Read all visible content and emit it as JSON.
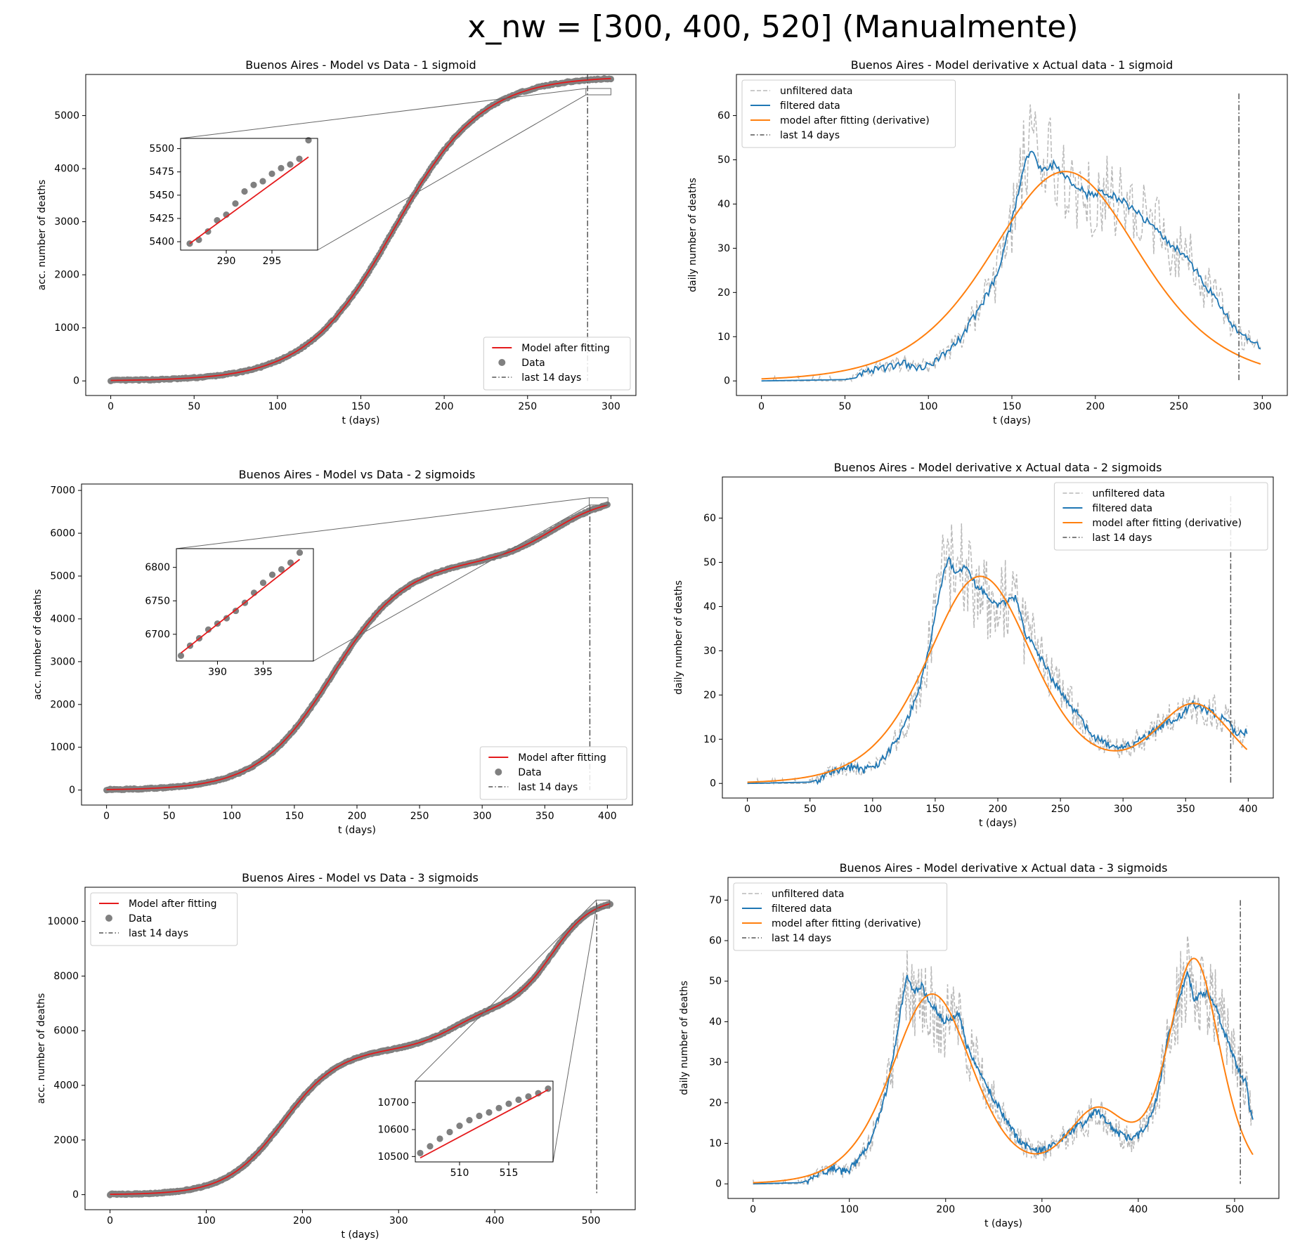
{
  "figure": {
    "suptitle": "x_nw = [300, 400, 520] (Manualmente)"
  },
  "colors": {
    "model": "#e41a1c",
    "data_points": "#808080",
    "unfiltered": "#b9b9b9",
    "filtered": "#1f77b4",
    "derivative": "#ff7f0e",
    "last14": "#555555"
  },
  "chart_data": [
    {
      "id": "c1",
      "type": "scatter",
      "title": "Buenos Aires - Model vs Data - 1 sigmoid",
      "xlabel": "t (days)",
      "ylabel": "acc. number of deaths",
      "xlim": [
        -15,
        315
      ],
      "ylim": [
        -275,
        5775
      ],
      "xticks": [
        0,
        50,
        100,
        150,
        200,
        250,
        300
      ],
      "yticks": [
        0,
        1000,
        2000,
        3000,
        4000,
        5000
      ],
      "legend": {
        "position": "lower-right",
        "entries": [
          "Model after fitting",
          "Data",
          "last 14 days"
        ]
      },
      "last14_x": 286,
      "model": {
        "sigmoids": [
          {
            "A": 5740,
            "t0": 170,
            "k": 0.038
          }
        ]
      },
      "inset": {
        "xlim": [
          285,
          300
        ],
        "ylim": [
          5391,
          5511
        ],
        "xticks": [
          290,
          295
        ],
        "yticks": [
          5400,
          5425,
          5450,
          5475,
          5500
        ],
        "points": [
          [
            286,
            5398
          ],
          [
            287,
            5402
          ],
          [
            288,
            5411
          ],
          [
            289,
            5423
          ],
          [
            290,
            5429
          ],
          [
            291,
            5441
          ],
          [
            292,
            5454
          ],
          [
            293,
            5461
          ],
          [
            294,
            5465
          ],
          [
            295,
            5473
          ],
          [
            296,
            5479
          ],
          [
            297,
            5483
          ],
          [
            298,
            5489
          ],
          [
            299,
            5509
          ]
        ],
        "model_points": [
          [
            286,
            5398
          ],
          [
            299,
            5491
          ]
        ]
      }
    },
    {
      "id": "c2",
      "type": "line",
      "title": "Buenos Aires - Model derivative x Actual data - 1 sigmoid",
      "xlabel": "t (days)",
      "ylabel": "daily number of deaths",
      "xlim": [
        -15,
        315
      ],
      "ylim": [
        -3.3,
        69.3
      ],
      "xticks": [
        0,
        50,
        100,
        150,
        200,
        250,
        300
      ],
      "yticks": [
        0,
        10,
        20,
        30,
        40,
        50,
        60
      ],
      "legend": {
        "position": "top-left",
        "entries": [
          "unfiltered data",
          "filtered data",
          "model after fitting (derivative)",
          "last 14 days"
        ]
      },
      "last14_x": 286,
      "last14_yrange": [
        0,
        65
      ],
      "days": 300,
      "filtered_keypoints": [
        [
          0,
          0
        ],
        [
          50,
          0.3
        ],
        [
          55,
          0.6
        ],
        [
          58,
          1.5
        ],
        [
          65,
          2.5
        ],
        [
          75,
          3
        ],
        [
          85,
          4.2
        ],
        [
          92,
          3.2
        ],
        [
          100,
          3.5
        ],
        [
          110,
          6
        ],
        [
          120,
          10
        ],
        [
          130,
          16
        ],
        [
          140,
          23
        ],
        [
          150,
          36
        ],
        [
          155,
          44
        ],
        [
          158,
          50
        ],
        [
          162,
          52
        ],
        [
          168,
          47
        ],
        [
          175,
          49
        ],
        [
          182,
          46
        ],
        [
          190,
          44
        ],
        [
          195,
          42
        ],
        [
          205,
          43
        ],
        [
          215,
          41
        ],
        [
          225,
          38
        ],
        [
          235,
          35
        ],
        [
          245,
          31
        ],
        [
          255,
          28
        ],
        [
          265,
          22
        ],
        [
          275,
          17
        ],
        [
          285,
          11
        ],
        [
          292,
          9
        ],
        [
          299,
          7.5
        ]
      ],
      "model": {
        "sigmoids": [
          {
            "A": 5740,
            "t0": 182,
            "k": 0.033
          }
        ]
      }
    },
    {
      "id": "c3",
      "type": "scatter",
      "title": "Buenos Aires - Model vs Data - 2 sigmoids",
      "xlabel": "t (days)",
      "ylabel": "acc. number of deaths",
      "xlim": [
        -20,
        420
      ],
      "ylim": [
        -350,
        7150
      ],
      "xticks": [
        0,
        50,
        100,
        150,
        200,
        250,
        300,
        350,
        400
      ],
      "yticks": [
        0,
        1000,
        2000,
        3000,
        4000,
        5000,
        6000,
        7000
      ],
      "legend": {
        "position": "lower-right",
        "entries": [
          "Model after fitting",
          "Data",
          "last 14 days"
        ]
      },
      "last14_x": 386,
      "model": {
        "sigmoids": [
          {
            "A": 5350,
            "t0": 180,
            "k": 0.034
          },
          {
            "A": 1500,
            "t0": 357,
            "k": 0.045
          }
        ]
      },
      "inset": {
        "xlim": [
          385.5,
          400.5
        ],
        "ylim": [
          6660,
          6828
        ],
        "xticks": [
          390,
          395
        ],
        "yticks": [
          6700,
          6750,
          6800
        ],
        "points": [
          [
            386,
            6668
          ],
          [
            387,
            6683
          ],
          [
            388,
            6694
          ],
          [
            389,
            6707
          ],
          [
            390,
            6716
          ],
          [
            391,
            6724
          ],
          [
            392,
            6735
          ],
          [
            393,
            6747
          ],
          [
            394,
            6762
          ],
          [
            395,
            6777
          ],
          [
            396,
            6789
          ],
          [
            397,
            6797
          ],
          [
            398,
            6807
          ],
          [
            399,
            6822
          ]
        ],
        "model_points": [
          [
            386,
            6672
          ],
          [
            399,
            6812
          ]
        ]
      }
    },
    {
      "id": "c4",
      "type": "line",
      "title": "Buenos Aires - Model derivative x Actual data - 2 sigmoids",
      "xlabel": "t (days)",
      "ylabel": "daily number of deaths",
      "xlim": [
        -20,
        420
      ],
      "ylim": [
        -3.3,
        69.3
      ],
      "xticks": [
        0,
        50,
        100,
        150,
        200,
        250,
        300,
        350,
        400
      ],
      "yticks": [
        0,
        10,
        20,
        30,
        40,
        50,
        60
      ],
      "legend": {
        "position": "top-right",
        "entries": [
          "unfiltered data",
          "filtered data",
          "model after fitting (derivative)",
          "last 14 days"
        ]
      },
      "last14_x": 386,
      "last14_yrange": [
        0,
        65
      ],
      "days": 400,
      "filtered_keypoints": [
        [
          0,
          0
        ],
        [
          50,
          0.3
        ],
        [
          58,
          1
        ],
        [
          65,
          2.5
        ],
        [
          75,
          3
        ],
        [
          85,
          4
        ],
        [
          92,
          3
        ],
        [
          100,
          3.5
        ],
        [
          110,
          6
        ],
        [
          120,
          10
        ],
        [
          130,
          16
        ],
        [
          140,
          24
        ],
        [
          150,
          38
        ],
        [
          155,
          45
        ],
        [
          160,
          51
        ],
        [
          168,
          47
        ],
        [
          175,
          49
        ],
        [
          182,
          45
        ],
        [
          190,
          43
        ],
        [
          198,
          40
        ],
        [
          206,
          41
        ],
        [
          214,
          42
        ],
        [
          222,
          34
        ],
        [
          235,
          28
        ],
        [
          245,
          23
        ],
        [
          255,
          19
        ],
        [
          265,
          15
        ],
        [
          275,
          11
        ],
        [
          285,
          9
        ],
        [
          295,
          8
        ],
        [
          305,
          8.5
        ],
        [
          315,
          10
        ],
        [
          325,
          12
        ],
        [
          335,
          14
        ],
        [
          345,
          15
        ],
        [
          355,
          18
        ],
        [
          362,
          17
        ],
        [
          372,
          16
        ],
        [
          382,
          14
        ],
        [
          392,
          11
        ],
        [
          399,
          12
        ]
      ],
      "model": {
        "sigmoids": [
          {
            "A": 5350,
            "t0": 186,
            "k": 0.035
          },
          {
            "A": 1500,
            "t0": 357,
            "k": 0.047
          }
        ]
      }
    },
    {
      "id": "c5",
      "type": "scatter",
      "title": "Buenos Aires - Model vs Data - 3 sigmoids",
      "xlabel": "t (days)",
      "ylabel": "acc. number of deaths",
      "xlim": [
        -26,
        546
      ],
      "ylim": [
        -550,
        11250
      ],
      "xticks": [
        0,
        100,
        200,
        300,
        400,
        500
      ],
      "yticks": [
        0,
        2000,
        4000,
        6000,
        8000,
        10000
      ],
      "legend": {
        "position": "top-left",
        "entries": [
          "Model after fitting",
          "Data",
          "last 14 days"
        ]
      },
      "last14_x": 506,
      "model": {
        "sigmoids": [
          {
            "A": 5350,
            "t0": 180,
            "k": 0.034
          },
          {
            "A": 1500,
            "t0": 357,
            "k": 0.045
          },
          {
            "A": 4000,
            "t0": 460,
            "k": 0.049
          }
        ]
      },
      "inset": {
        "xlim": [
          505.5,
          519.5
        ],
        "ylim": [
          10480,
          10780
        ],
        "xticks": [
          510,
          515
        ],
        "yticks": [
          10500,
          10600,
          10700
        ],
        "points": [
          [
            506,
            10513
          ],
          [
            507,
            10538
          ],
          [
            508,
            10566
          ],
          [
            509,
            10591
          ],
          [
            510,
            10614
          ],
          [
            511,
            10635
          ],
          [
            512,
            10651
          ],
          [
            513,
            10664
          ],
          [
            514,
            10680
          ],
          [
            515,
            10696
          ],
          [
            516,
            10711
          ],
          [
            517,
            10723
          ],
          [
            518,
            10735
          ],
          [
            519,
            10752
          ]
        ],
        "model_points": [
          [
            506,
            10495
          ],
          [
            519,
            10748
          ]
        ]
      }
    },
    {
      "id": "c6",
      "type": "line",
      "title": "Buenos Aires - Model derivative x Actual data - 3 sigmoids",
      "xlabel": "t (days)",
      "ylabel": "daily number of deaths",
      "xlim": [
        -26,
        546
      ],
      "ylim": [
        -3.6,
        75.6
      ],
      "xticks": [
        0,
        100,
        200,
        300,
        400,
        500
      ],
      "yticks": [
        0,
        10,
        20,
        30,
        40,
        50,
        60,
        70
      ],
      "legend": {
        "position": "top-left",
        "entries": [
          "unfiltered data",
          "filtered data",
          "model after fitting (derivative)",
          "last 14 days"
        ]
      },
      "last14_x": 506,
      "last14_yrange": [
        0,
        70
      ],
      "days": 520,
      "filtered_keypoints": [
        [
          0,
          0
        ],
        [
          50,
          0.3
        ],
        [
          58,
          1
        ],
        [
          65,
          2.5
        ],
        [
          75,
          3
        ],
        [
          85,
          4
        ],
        [
          92,
          3
        ],
        [
          100,
          3.5
        ],
        [
          110,
          6
        ],
        [
          120,
          10
        ],
        [
          130,
          16
        ],
        [
          140,
          24
        ],
        [
          150,
          38
        ],
        [
          155,
          45
        ],
        [
          160,
          51
        ],
        [
          168,
          47
        ],
        [
          175,
          49
        ],
        [
          182,
          45
        ],
        [
          190,
          43
        ],
        [
          198,
          40
        ],
        [
          206,
          41
        ],
        [
          214,
          42
        ],
        [
          222,
          34
        ],
        [
          235,
          28
        ],
        [
          245,
          23
        ],
        [
          255,
          19
        ],
        [
          265,
          15
        ],
        [
          275,
          11
        ],
        [
          285,
          9
        ],
        [
          295,
          8
        ],
        [
          305,
          8.5
        ],
        [
          315,
          10
        ],
        [
          325,
          12
        ],
        [
          335,
          14
        ],
        [
          345,
          15
        ],
        [
          355,
          18
        ],
        [
          362,
          17
        ],
        [
          372,
          14
        ],
        [
          382,
          12
        ],
        [
          392,
          11
        ],
        [
          400,
          12
        ],
        [
          410,
          15
        ],
        [
          420,
          22
        ],
        [
          430,
          35
        ],
        [
          440,
          44
        ],
        [
          448,
          50
        ],
        [
          452,
          52
        ],
        [
          458,
          45
        ],
        [
          465,
          47
        ],
        [
          472,
          47
        ],
        [
          480,
          44
        ],
        [
          490,
          37
        ],
        [
          498,
          32
        ],
        [
          506,
          27
        ],
        [
          512,
          25
        ],
        [
          515,
          20
        ],
        [
          519,
          15
        ]
      ],
      "model": {
        "sigmoids": [
          {
            "A": 5350,
            "t0": 186,
            "k": 0.035
          },
          {
            "A": 1500,
            "t0": 357,
            "k": 0.047
          },
          {
            "A": 4000,
            "t0": 458,
            "k": 0.055
          }
        ]
      }
    }
  ]
}
